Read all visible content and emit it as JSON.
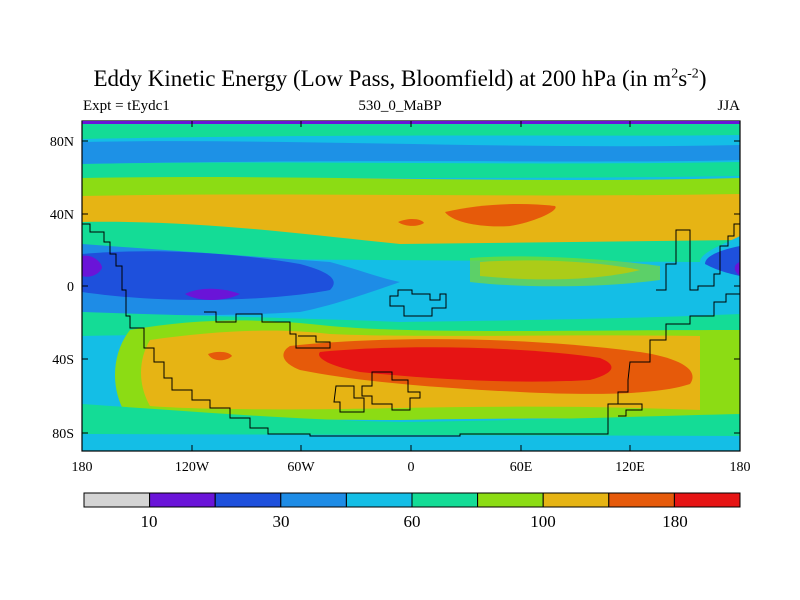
{
  "title": {
    "prefix": "Eddy Kinetic Energy (Low Pass, Bloomfield) at 200 hPa (in m",
    "sup1": "2",
    "mid": "s",
    "sup2": "-2",
    "suffix": ")"
  },
  "left_label": "Expt = tEydc1",
  "center_label": "530_0_MaBP",
  "right_label": "JJA",
  "axes": {
    "x_ticks": [
      "180",
      "120W",
      "60W",
      "0",
      "60E",
      "120E",
      "180"
    ],
    "y_ticks": [
      "80N",
      "40N",
      "0",
      "40S",
      "80S"
    ]
  },
  "colorbar": {
    "colors": [
      "#d4d4d4",
      "#6a14d8",
      "#1e50dc",
      "#1e8ce6",
      "#14bee6",
      "#14dc96",
      "#8cdc14",
      "#e6b414",
      "#e65a0a",
      "#e61414"
    ],
    "labels": [
      "10",
      "30",
      "60",
      "100",
      "180"
    ]
  }
}
